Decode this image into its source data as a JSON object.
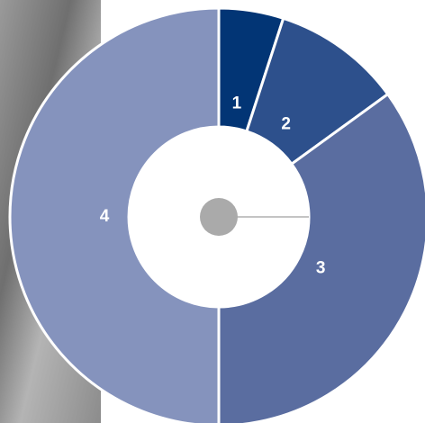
{
  "chart_data": {
    "type": "pie",
    "categories": [
      "1",
      "2",
      "3",
      "4"
    ],
    "values": [
      5,
      10,
      35,
      50
    ],
    "colors": [
      "#023575",
      "#2d508c",
      "#5a6da0",
      "#8593bd"
    ]
  }
}
